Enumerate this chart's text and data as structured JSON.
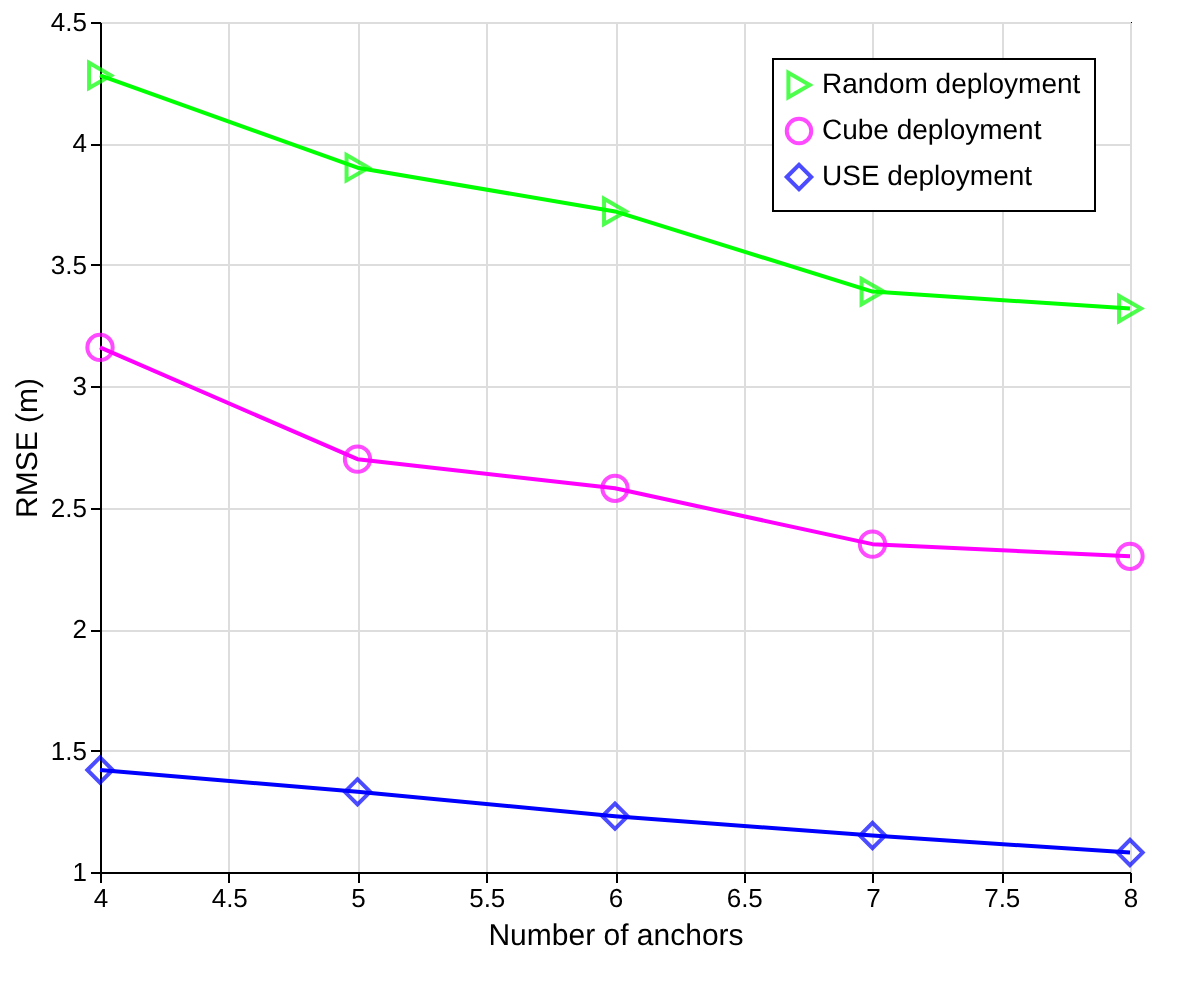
{
  "chart_data": {
    "type": "line",
    "xlabel": "Number of anchors",
    "ylabel": "RMSE (m)",
    "x": [
      4,
      5,
      6,
      7,
      8
    ],
    "series": [
      {
        "name": "Random deployment",
        "color": "#00ff00",
        "marker": "triangle",
        "values": [
          4.28,
          3.9,
          3.72,
          3.39,
          3.32
        ]
      },
      {
        "name": "Cube deployment",
        "color": "#ff00ff",
        "marker": "circle",
        "values": [
          3.16,
          2.7,
          2.58,
          2.35,
          2.3
        ]
      },
      {
        "name": "USE deployment",
        "color": "#0000ff",
        "marker": "diamond",
        "values": [
          1.42,
          1.33,
          1.23,
          1.15,
          1.08
        ]
      }
    ],
    "xlim": [
      4,
      8
    ],
    "xticks": [
      4,
      4.5,
      5,
      5.5,
      6,
      6.5,
      7,
      7.5,
      8
    ],
    "ylim": [
      1,
      4.5
    ],
    "yticks": [
      1,
      1.5,
      2,
      2.5,
      3,
      3.5,
      4,
      4.5
    ],
    "grid": true,
    "legend": "top right",
    "line_style": "solid"
  }
}
